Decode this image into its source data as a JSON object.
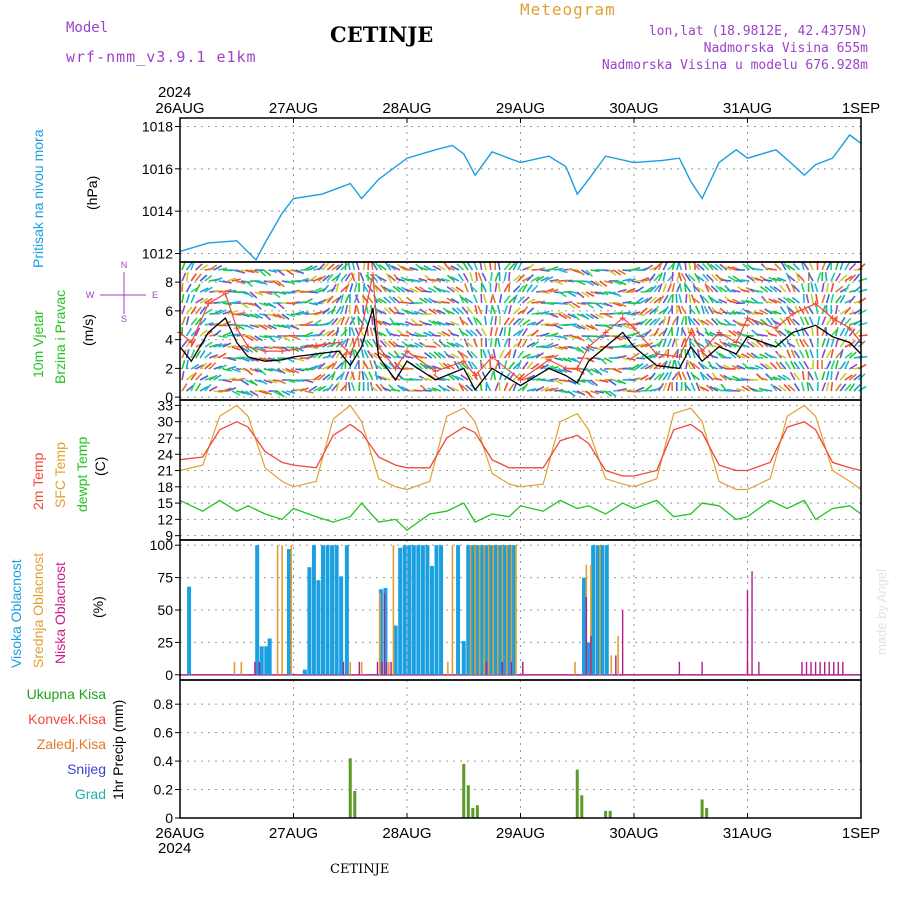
{
  "header": {
    "model_label": "Model",
    "model_name": "wrf-nmm_v3.9.1 e1km",
    "title": "CETINJE",
    "meteogram_label": "Meteogram",
    "lonlat": "lon,lat (18.9812E, 42.4375N)",
    "altitude": "Nadmorska Visina 655m",
    "model_altitude": "Nadmorska Visina u modelu 676.928m",
    "year_top": "2024",
    "year_bottom": "2024",
    "footer_station": "CETINJE",
    "watermark": "made by Angel"
  },
  "colors": {
    "pressure": "#1a9fe0",
    "wind_speed": "#000000",
    "wind_gust": "#f0483c",
    "t2m": "#f0483c",
    "tsfc": "#e0a030",
    "dewpoint": "#22c422",
    "cloud_high": "#1a9fe0",
    "cloud_mid": "#e0a030",
    "cloud_low": "#b0208c",
    "precip_total": "#22a022",
    "precip_conv": "#f0483c",
    "precip_frozen": "#e07a28",
    "precip_snow": "#4040d0",
    "precip_graupel": "#20b0b0",
    "axis_purple": "#9c42c8",
    "grid": "#999999"
  },
  "chart_data": [
    {
      "type": "line",
      "panel": "pressure",
      "ylabel": "Pritisak na nivou mora",
      "unit": "(hPa)",
      "yticks": [
        1012,
        1014,
        1016,
        1018
      ],
      "ylim": [
        1011.6,
        1018.4
      ],
      "x_days": [
        "26AUG",
        "27AUG",
        "28AUG",
        "29AUG",
        "30AUG",
        "31AUG",
        "1SEP"
      ],
      "x": [
        0,
        0.25,
        0.5,
        0.67,
        0.75,
        0.9,
        1,
        1.25,
        1.5,
        1.6,
        1.75,
        2,
        2.25,
        2.4,
        2.5,
        2.6,
        2.75,
        3,
        3.25,
        3.4,
        3.5,
        3.6,
        3.75,
        4,
        4.25,
        4.4,
        4.5,
        4.6,
        4.75,
        4.9,
        5,
        5.25,
        5.4,
        5.5,
        5.6,
        5.75,
        5.9,
        6
      ],
      "y": [
        1012.1,
        1012.5,
        1012.6,
        1011.7,
        1012.5,
        1013.9,
        1014.6,
        1014.8,
        1015.3,
        1014.6,
        1015.5,
        1016.5,
        1016.9,
        1017.1,
        1016.7,
        1015.7,
        1016.8,
        1016.3,
        1016.6,
        1016.1,
        1014.8,
        1015.5,
        1016.6,
        1016.3,
        1016.4,
        1016.5,
        1015.4,
        1014.6,
        1016.3,
        1016.9,
        1016.5,
        1016.9,
        1016.2,
        1015.7,
        1016.2,
        1016.5,
        1017.6,
        1017.2
      ]
    },
    {
      "type": "line",
      "panel": "wind",
      "ylabel": "10m Vjetar Brzina i Pravac",
      "unit": "(m/s)",
      "compass": [
        "N",
        "S",
        "E",
        "W"
      ],
      "yticks": [
        0,
        2,
        4,
        6,
        8
      ],
      "ylim": [
        -0.2,
        9.4
      ],
      "x": [
        0,
        0.1,
        0.25,
        0.4,
        0.5,
        0.6,
        0.75,
        0.9,
        1,
        1.2,
        1.4,
        1.5,
        1.6,
        1.7,
        1.75,
        1.9,
        2,
        2.25,
        2.5,
        2.6,
        2.75,
        3,
        3.25,
        3.4,
        3.5,
        3.6,
        3.75,
        3.9,
        4,
        4.2,
        4.4,
        4.5,
        4.6,
        4.75,
        4.9,
        5,
        5.25,
        5.4,
        5.6,
        5.75,
        5.9,
        6
      ],
      "speed": [
        3.5,
        2.5,
        4.5,
        5.5,
        3.8,
        2.8,
        2.5,
        2.6,
        2.8,
        3.0,
        3.2,
        2.2,
        3.5,
        6.2,
        2.8,
        1.2,
        2.5,
        1.2,
        2.0,
        0.5,
        2.0,
        0.8,
        2.0,
        1.5,
        1.0,
        2.5,
        3.5,
        4.5,
        3.5,
        2.2,
        2.0,
        3.5,
        2.5,
        3.5,
        3.0,
        4.2,
        3.5,
        4.5,
        5.0,
        4.2,
        3.8,
        3.0
      ],
      "gust": [
        4.5,
        3.8,
        6.5,
        7.2,
        4.8,
        3.5,
        3.2,
        3.2,
        3.3,
        3.6,
        3.8,
        3.0,
        4.8,
        8.5,
        3.5,
        2.0,
        3.2,
        1.8,
        2.5,
        1.5,
        2.8,
        1.2,
        2.6,
        2.0,
        2.0,
        3.5,
        4.5,
        5.5,
        4.8,
        3.0,
        2.8,
        4.5,
        3.2,
        4.5,
        3.8,
        5.5,
        4.8,
        5.8,
        6.5,
        5.5,
        4.8,
        3.8
      ]
    },
    {
      "type": "line",
      "panel": "temperature",
      "labels": [
        "2m Temp",
        "SFC Temp",
        "dewpt Temp"
      ],
      "unit": "(C)",
      "yticks": [
        9,
        12,
        15,
        18,
        21,
        24,
        27,
        30,
        33
      ],
      "ylim": [
        8.2,
        34.0
      ],
      "x": [
        0,
        0.2,
        0.35,
        0.5,
        0.6,
        0.75,
        0.9,
        1,
        1.2,
        1.35,
        1.5,
        1.6,
        1.75,
        1.9,
        2,
        2.2,
        2.35,
        2.5,
        2.6,
        2.75,
        2.9,
        3,
        3.2,
        3.35,
        3.5,
        3.6,
        3.75,
        3.9,
        4,
        4.2,
        4.35,
        4.5,
        4.6,
        4.75,
        4.9,
        5,
        5.2,
        5.35,
        5.5,
        5.6,
        5.75,
        5.9,
        6
      ],
      "t2m": [
        23.0,
        23.5,
        28.5,
        30.0,
        29.0,
        24.5,
        22.5,
        22.0,
        21.5,
        27.5,
        29.5,
        28.0,
        23.5,
        22.0,
        21.5,
        21.5,
        27.0,
        29.0,
        28.0,
        23.0,
        21.5,
        21.5,
        21.5,
        26.5,
        27.5,
        26.0,
        21.0,
        20.0,
        20.0,
        21.0,
        28.5,
        29.5,
        28.0,
        22.0,
        21.0,
        21.0,
        22.5,
        29.0,
        30.0,
        28.5,
        22.5,
        21.5,
        21.0
      ],
      "tsfc": [
        21.0,
        22.0,
        31.0,
        33.0,
        31.0,
        21.5,
        19.0,
        18.0,
        19.0,
        30.5,
        33.0,
        30.0,
        19.5,
        18.0,
        17.5,
        19.0,
        31.0,
        32.5,
        30.0,
        20.5,
        18.5,
        18.0,
        18.5,
        30.0,
        31.5,
        28.5,
        19.5,
        18.5,
        18.0,
        19.5,
        31.5,
        32.5,
        30.0,
        19.0,
        17.5,
        17.5,
        19.5,
        31.0,
        33.0,
        31.0,
        21.0,
        19.0,
        17.5
      ],
      "dewpoint": [
        15.5,
        13.5,
        15.5,
        13.5,
        14.5,
        13.0,
        12.0,
        14.0,
        12.5,
        11.5,
        12.5,
        15.0,
        11.5,
        12.0,
        10.0,
        13.0,
        13.5,
        15.0,
        11.5,
        13.0,
        12.5,
        14.5,
        13.5,
        15.5,
        14.0,
        14.5,
        13.0,
        15.0,
        14.0,
        15.5,
        12.5,
        13.0,
        15.0,
        14.5,
        12.0,
        12.5,
        15.5,
        14.0,
        15.5,
        12.0,
        14.0,
        14.5,
        13.0
      ]
    },
    {
      "type": "bar",
      "panel": "cloud",
      "labels": [
        "Visoka Oblacnost",
        "Srednja Oblacnost",
        "Niska Oblacnost"
      ],
      "unit": "(%)",
      "yticks": [
        0,
        25,
        50,
        75,
        100
      ],
      "ylim": [
        -4,
        104
      ],
      "high": [
        [
          0.08,
          68
        ],
        [
          0.68,
          100
        ],
        [
          0.72,
          22
        ],
        [
          0.76,
          22
        ],
        [
          0.79,
          28
        ],
        [
          0.96,
          97
        ],
        [
          1.1,
          4
        ],
        [
          1.14,
          83
        ],
        [
          1.18,
          100
        ],
        [
          1.22,
          73
        ],
        [
          1.26,
          100
        ],
        [
          1.3,
          100
        ],
        [
          1.34,
          100
        ],
        [
          1.38,
          100
        ],
        [
          1.42,
          76
        ],
        [
          1.47,
          100
        ],
        [
          1.77,
          66
        ],
        [
          1.81,
          67
        ],
        [
          1.9,
          38
        ],
        [
          1.94,
          98
        ],
        [
          1.98,
          100
        ],
        [
          2.02,
          100
        ],
        [
          2.06,
          100
        ],
        [
          2.1,
          100
        ],
        [
          2.14,
          100
        ],
        [
          2.18,
          100
        ],
        [
          2.22,
          84
        ],
        [
          2.26,
          100
        ],
        [
          2.3,
          100
        ],
        [
          2.45,
          100
        ],
        [
          2.5,
          26
        ],
        [
          2.54,
          100
        ],
        [
          2.58,
          100
        ],
        [
          2.62,
          100
        ],
        [
          2.66,
          100
        ],
        [
          2.7,
          100
        ],
        [
          2.74,
          100
        ],
        [
          2.78,
          100
        ],
        [
          2.82,
          100
        ],
        [
          2.86,
          100
        ],
        [
          2.9,
          100
        ],
        [
          2.94,
          100
        ],
        [
          3.56,
          75
        ],
        [
          3.6,
          25
        ],
        [
          3.64,
          100
        ],
        [
          3.68,
          100
        ],
        [
          3.72,
          100
        ],
        [
          3.76,
          100
        ]
      ],
      "mid": [
        [
          0.48,
          10
        ],
        [
          0.54,
          10
        ],
        [
          0.86,
          100
        ],
        [
          0.9,
          100
        ],
        [
          0.98,
          100
        ],
        [
          1.5,
          10
        ],
        [
          1.6,
          10
        ],
        [
          1.76,
          63
        ],
        [
          1.84,
          10
        ],
        [
          1.88,
          100
        ],
        [
          2.36,
          10
        ],
        [
          2.4,
          100
        ],
        [
          2.56,
          100
        ],
        [
          2.6,
          100
        ],
        [
          2.64,
          100
        ],
        [
          2.68,
          100
        ],
        [
          2.72,
          100
        ],
        [
          2.76,
          100
        ],
        [
          2.8,
          100
        ],
        [
          2.84,
          100
        ],
        [
          2.88,
          100
        ],
        [
          2.92,
          100
        ],
        [
          2.96,
          100
        ],
        [
          3.02,
          10
        ],
        [
          3.48,
          10
        ],
        [
          3.58,
          85
        ],
        [
          3.62,
          85
        ],
        [
          3.7,
          100
        ],
        [
          3.8,
          15
        ],
        [
          3.86,
          30
        ],
        [
          5.0,
          10
        ]
      ],
      "low": [
        [
          0.66,
          10
        ],
        [
          0.7,
          10
        ],
        [
          1.44,
          10
        ],
        [
          1.58,
          10
        ],
        [
          1.74,
          10
        ],
        [
          1.78,
          10
        ],
        [
          1.8,
          63
        ],
        [
          1.82,
          10
        ],
        [
          1.86,
          10
        ],
        [
          2.7,
          10
        ],
        [
          2.84,
          10
        ],
        [
          2.92,
          10
        ],
        [
          3.02,
          10
        ],
        [
          3.58,
          60
        ],
        [
          3.62,
          30
        ],
        [
          3.84,
          15
        ],
        [
          3.9,
          50
        ],
        [
          4.4,
          10
        ],
        [
          4.6,
          10
        ],
        [
          5.0,
          65
        ],
        [
          5.04,
          80
        ],
        [
          5.1,
          10
        ],
        [
          5.48,
          10
        ],
        [
          5.52,
          10
        ],
        [
          5.56,
          10
        ],
        [
          5.6,
          10
        ],
        [
          5.64,
          10
        ],
        [
          5.68,
          10
        ],
        [
          5.72,
          10
        ],
        [
          5.76,
          10
        ],
        [
          5.8,
          10
        ],
        [
          5.84,
          10
        ]
      ]
    },
    {
      "type": "bar",
      "panel": "precip",
      "labels": [
        "Ukupna Kisa",
        "Konvek.Kisa",
        "Zaledj.Kisa",
        "Snijeg",
        "Grad"
      ],
      "unit": "1hr Precip (mm)",
      "yticks": [
        0,
        0.2,
        0.4,
        0.6,
        0.8
      ],
      "ylim": [
        0,
        0.97
      ],
      "total": [
        [
          1.5,
          0.42
        ],
        [
          1.54,
          0.19
        ],
        [
          2.5,
          0.38
        ],
        [
          2.54,
          0.23
        ],
        [
          2.58,
          0.07
        ],
        [
          2.62,
          0.09
        ],
        [
          3.5,
          0.34
        ],
        [
          3.54,
          0.16
        ],
        [
          3.75,
          0.05
        ],
        [
          3.79,
          0.05
        ],
        [
          4.6,
          0.13
        ],
        [
          4.64,
          0.07
        ]
      ]
    }
  ]
}
